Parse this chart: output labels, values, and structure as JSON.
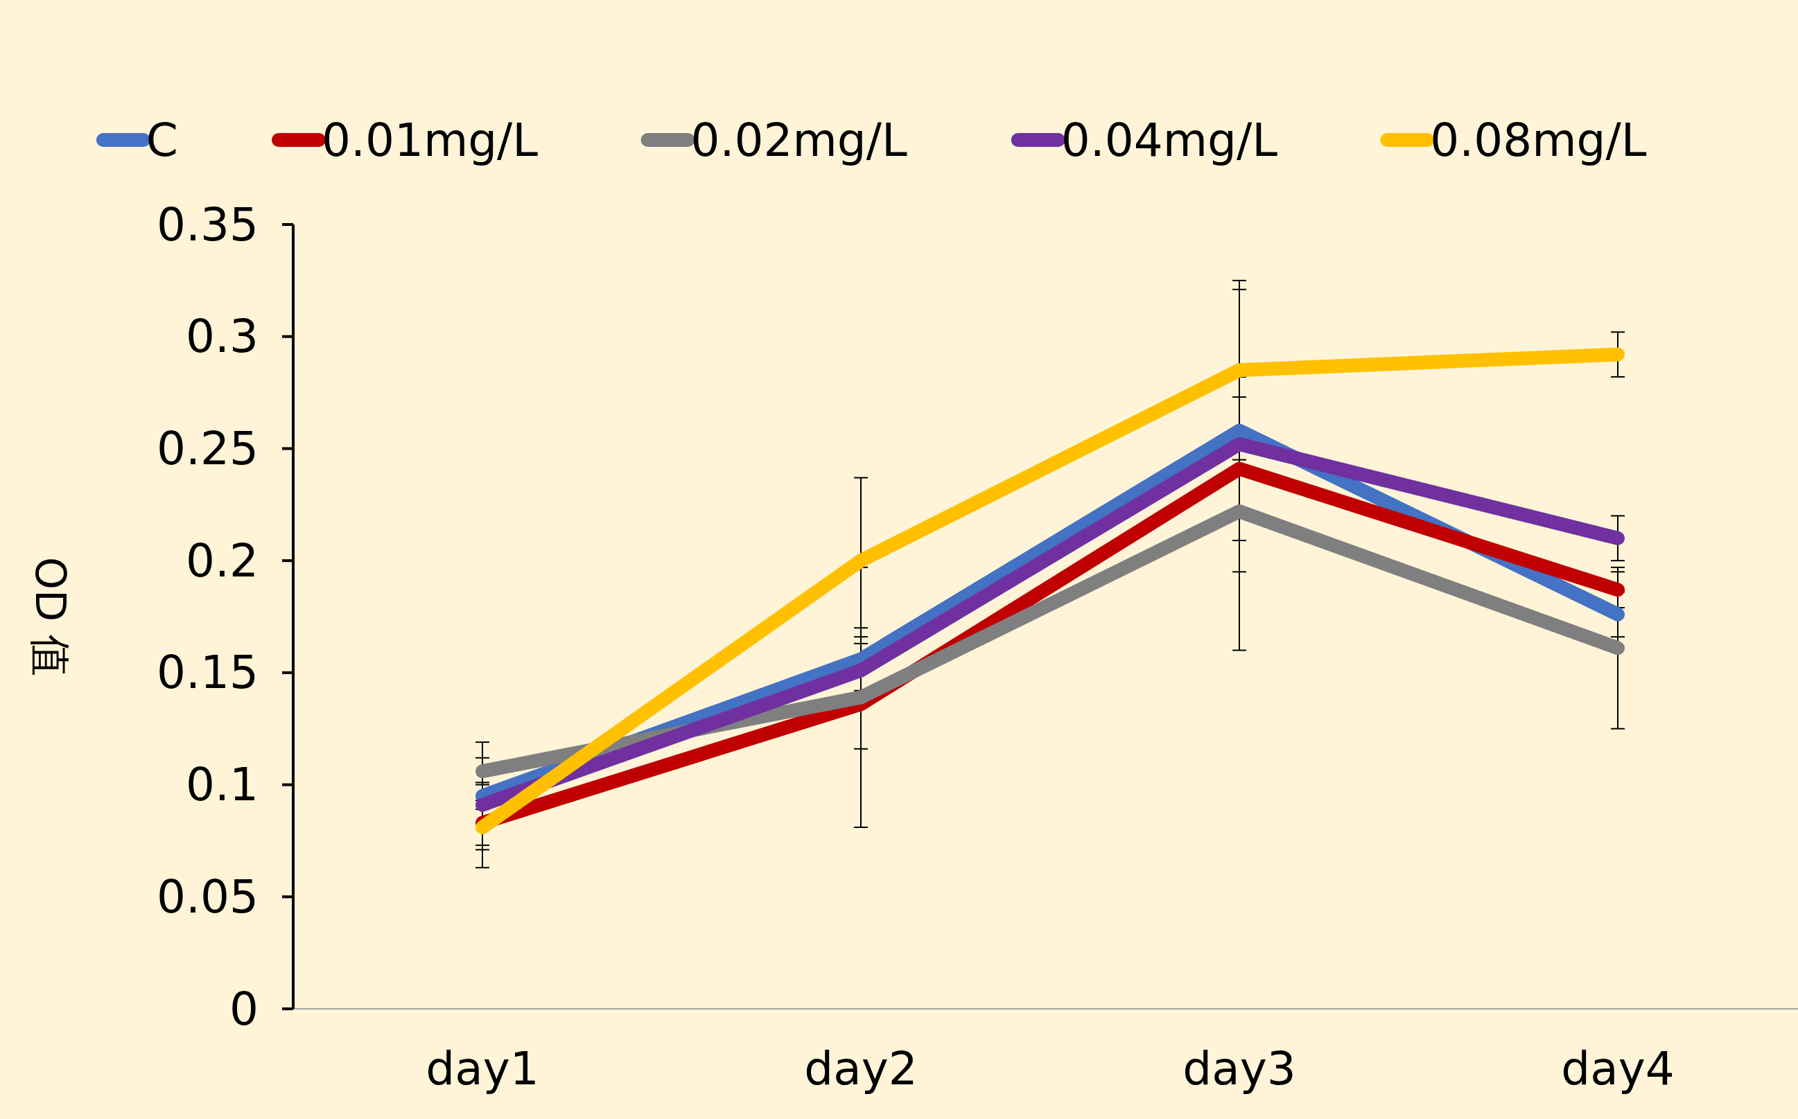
{
  "chart_data": {
    "type": "line",
    "ylabel": "OD 值",
    "categories": [
      "day1",
      "day2",
      "day3",
      "day4"
    ],
    "ylim": [
      0,
      0.35
    ],
    "yticks": [
      0,
      {
        "value": 0.05,
        "label": "0.05"
      },
      {
        "value": 0.1,
        "label": "0.1"
      },
      {
        "value": 0.15,
        "label": "0.15"
      },
      {
        "value": 0.2,
        "label": "0.2"
      },
      {
        "value": 0.25,
        "label": "0.25"
      },
      {
        "value": 0.3,
        "label": "0.3"
      },
      {
        "value": 0.35,
        "label": "0.35"
      }
    ],
    "grid": false,
    "legend": "top",
    "marker": "none",
    "line_style": "solid",
    "series": [
      {
        "name": "C",
        "color": "#4472c4",
        "values": [
          0.095,
          0.156,
          0.258,
          0.176
        ],
        "errors": [
          0.006,
          0.014,
          0.063,
          0.01
        ]
      },
      {
        "name": "0.01mg/L",
        "color": "#c00000",
        "values": [
          0.083,
          0.136,
          0.241,
          0.187
        ],
        "errors": [
          0.01,
          0.02,
          0.032,
          0.008
        ]
      },
      {
        "name": "0.02mg/L",
        "color": "#7f7f7f",
        "values": [
          0.106,
          0.139,
          0.222,
          0.161
        ],
        "errors": [
          0.006,
          0.058,
          0.062,
          0.036
        ]
      },
      {
        "name": "0.04mg/L",
        "color": "#7030a0",
        "values": [
          0.091,
          0.151,
          0.252,
          0.21
        ],
        "errors": [
          0.028,
          0.015,
          0.03,
          0.01
        ]
      },
      {
        "name": "0.08mg/L",
        "color": "#ffc000",
        "values": [
          0.081,
          0.2,
          0.285,
          0.292
        ],
        "errors": [
          0.01,
          0.037,
          0.04,
          0.01
        ]
      }
    ]
  }
}
